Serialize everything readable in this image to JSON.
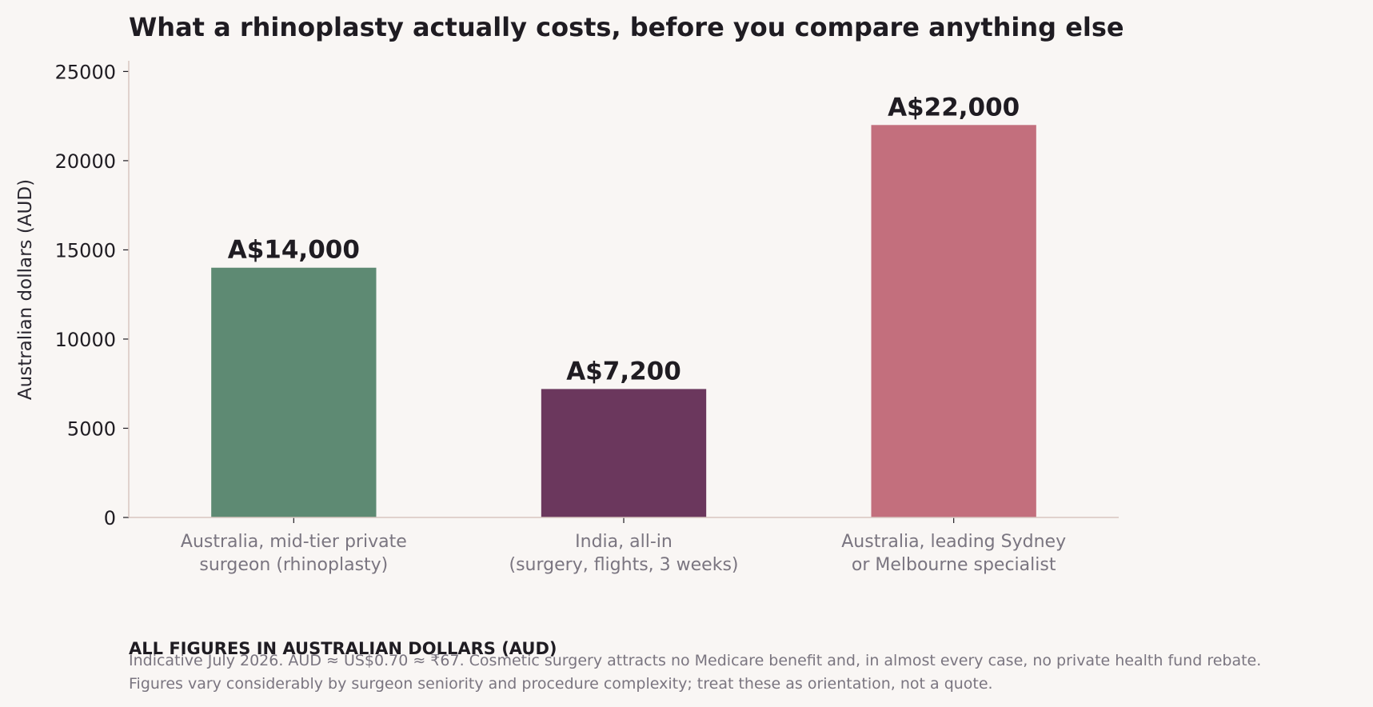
{
  "chart_data": {
    "type": "bar",
    "title": "What a rhinoplasty actually costs, before you compare anything else",
    "ylabel": "Australian dollars (AUD)",
    "xlabel": "",
    "ylim": [
      0,
      25600
    ],
    "yticks": [
      0,
      5000,
      10000,
      15000,
      20000,
      25000
    ],
    "grid": false,
    "categories": [
      [
        "Australia, mid-tier private",
        "surgeon (rhinoplasty)"
      ],
      [
        "India, all-in",
        "(surgery, flights, 3 weeks)"
      ],
      [
        "Australia, leading Sydney",
        "or Melbourne specialist"
      ]
    ],
    "values": [
      14000,
      7200,
      22000
    ],
    "value_labels": [
      "A$14,000",
      "A$7,200",
      "A$22,000"
    ],
    "colors": [
      "#5e8a73",
      "#6b375d",
      "#c36f7d"
    ]
  },
  "notes": {
    "heading": "ALL FIGURES IN AUSTRALIAN DOLLARS (AUD)",
    "lines": [
      "Indicative July 2026. AUD ≈ US$0.70 ≈ ₹67. Cosmetic surgery attracts no Medicare benefit and, in almost every case, no private health fund rebate.",
      "Figures vary considerably by surgeon seniority and procedure complexity; treat these as orientation, not a quote."
    ]
  }
}
